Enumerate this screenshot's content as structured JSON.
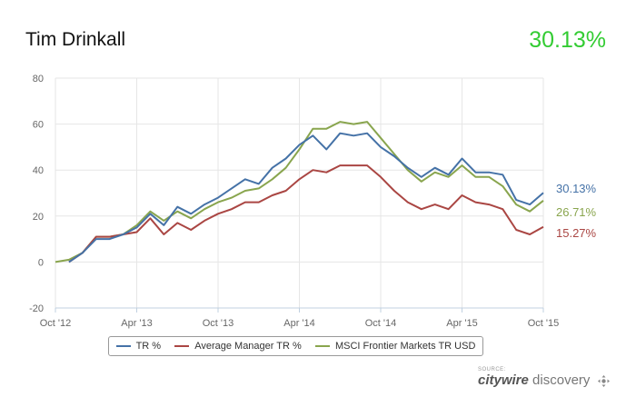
{
  "header": {
    "title": "Tim Drinkall",
    "headline_value": "30.13%",
    "headline_color": "#33cc33"
  },
  "chart_data": {
    "type": "line",
    "ylim": [
      -20,
      80
    ],
    "yticks": [
      -20,
      0,
      20,
      40,
      60,
      80
    ],
    "xlim": [
      0,
      36
    ],
    "xticks": [
      {
        "x": 0,
        "label": "Oct '12"
      },
      {
        "x": 6,
        "label": "Apr '13"
      },
      {
        "x": 12,
        "label": "Oct '13"
      },
      {
        "x": 18,
        "label": "Apr '14"
      },
      {
        "x": 24,
        "label": "Oct '14"
      },
      {
        "x": 30,
        "label": "Apr '15"
      },
      {
        "x": 36,
        "label": "Oct '15"
      }
    ],
    "grid": true,
    "legend_position": "bottom-center",
    "series": [
      {
        "name": "TR %",
        "color": "#4572a7",
        "end_label": "30.13%",
        "x": [
          1,
          2,
          3,
          4,
          5,
          6,
          7,
          8,
          9,
          10,
          11,
          12,
          13,
          14,
          15,
          16,
          17,
          18,
          19,
          20,
          21,
          22,
          23,
          24,
          25,
          26,
          27,
          28,
          29,
          30,
          31,
          32,
          33,
          34,
          35,
          36
        ],
        "values": [
          0,
          4,
          10,
          10,
          12,
          15,
          21,
          16,
          24,
          21,
          25,
          28,
          32,
          36,
          34,
          41,
          45,
          51,
          55,
          49,
          56,
          55,
          56,
          50,
          46,
          41,
          37,
          41,
          38,
          45,
          39,
          39,
          38,
          27,
          25,
          30.13
        ]
      },
      {
        "name": "Average Manager TR %",
        "color": "#aa4643",
        "end_label": "15.27%",
        "x": [
          1,
          2,
          3,
          4,
          5,
          6,
          7,
          8,
          9,
          10,
          11,
          12,
          13,
          14,
          15,
          16,
          17,
          18,
          19,
          20,
          21,
          22,
          23,
          24,
          25,
          26,
          27,
          28,
          29,
          30,
          31,
          32,
          33,
          34,
          35,
          36
        ],
        "values": [
          0,
          4,
          11,
          11,
          12,
          13,
          19,
          12,
          17,
          14,
          18,
          21,
          23,
          26,
          26,
          29,
          31,
          36,
          40,
          39,
          42,
          42,
          42,
          37,
          31,
          26,
          23,
          25,
          23,
          29,
          26,
          25,
          23,
          14,
          12,
          15.27
        ]
      },
      {
        "name": "MSCI Frontier Markets TR USD",
        "color": "#89a54e",
        "end_label": "26.71%",
        "x": [
          0,
          1,
          2,
          3,
          4,
          5,
          6,
          7,
          8,
          9,
          10,
          11,
          12,
          13,
          14,
          15,
          16,
          17,
          18,
          19,
          20,
          21,
          22,
          23,
          24,
          25,
          26,
          27,
          28,
          29,
          30,
          31,
          32,
          33,
          34,
          35,
          36
        ],
        "values": [
          0,
          1,
          4,
          11,
          11,
          12,
          16,
          22,
          18,
          22,
          19,
          23,
          26,
          28,
          31,
          32,
          36,
          41,
          49,
          58,
          58,
          61,
          60,
          61,
          54,
          47,
          40,
          35,
          39,
          37,
          42,
          37,
          37,
          33,
          25,
          22,
          26.71
        ]
      }
    ]
  },
  "source": {
    "label": "SOURCE:",
    "brand_bold": "citywire",
    "brand_light": "discovery",
    "icon": "crosshair-icon"
  }
}
